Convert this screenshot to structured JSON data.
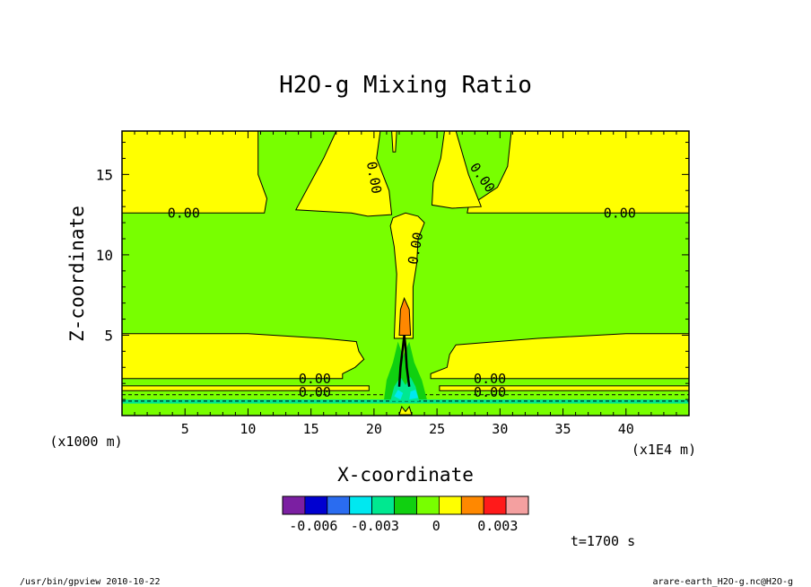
{
  "chart_data": {
    "type": "heatmap",
    "title": "H2O-g Mixing Ratio",
    "xlabel": "X-coordinate",
    "ylabel": "Z-coordinate",
    "x_unit_note": "(x1E4 m)",
    "y_unit_note": "(x1000 m)",
    "xlim": [
      0,
      45
    ],
    "ylim": [
      0,
      17.7
    ],
    "x_ticks": [
      "5",
      "10",
      "15",
      "20",
      "25",
      "30",
      "35",
      "40"
    ],
    "x_tick_values": [
      5,
      10,
      15,
      20,
      25,
      30,
      35,
      40
    ],
    "y_ticks": [
      "5",
      "10",
      "15"
    ],
    "y_tick_values": [
      5,
      10,
      15
    ],
    "contour_label": "0.00",
    "colorbar": {
      "colors": [
        "#7b1fa2",
        "#0000d0",
        "#2a6cf0",
        "#00e8f0",
        "#00e890",
        "#10d010",
        "#78ff00",
        "#ffff00",
        "#ff8800",
        "#ff1a1a",
        "#f4a0a0"
      ],
      "tick_labels": [
        "-0.006",
        "-0.003",
        "0",
        "0.003"
      ],
      "tick_values": [
        -0.006,
        -0.003,
        0,
        0.003
      ],
      "range": [
        -0.0075,
        0.0045
      ]
    },
    "field_colors": {
      "positive": "#ffff00",
      "near_zero": "#78ff00",
      "negative_small": "#10d010",
      "negative": "#00e890",
      "strong_negative": "#00e8f0",
      "high": "#ff8800"
    }
  },
  "time_label": "t=1700 s",
  "footer": {
    "left": "/usr/bin/gpview  2010-10-22",
    "right": "arare-earth_H2O-g.nc@H2O-g"
  }
}
